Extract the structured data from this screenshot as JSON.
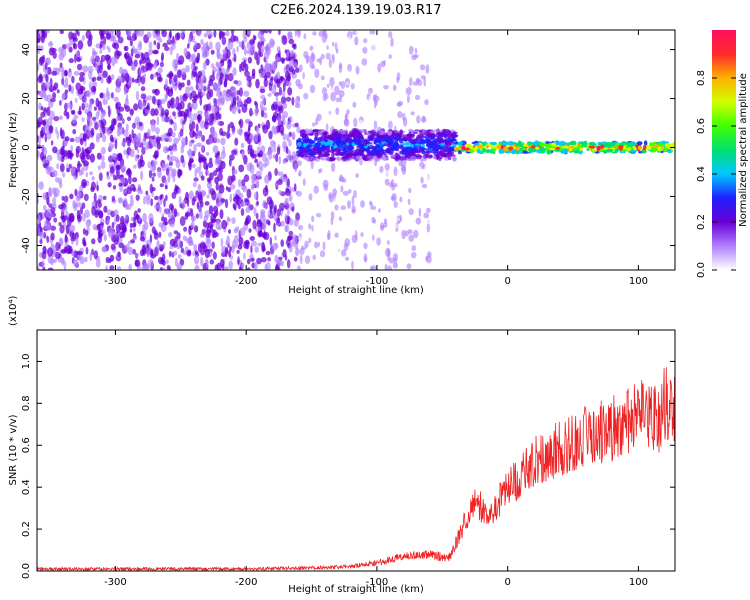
{
  "title": "C2E6.2024.139.19.03.R17",
  "colors": {
    "snr_line": "#ee2222",
    "spectrogram_purple": "#7a10e0",
    "colorbar_stops": [
      "#ffffff",
      "#b080ff",
      "#6a00d8",
      "#2020ff",
      "#00c8ff",
      "#00e070",
      "#40ff00",
      "#d0ff00",
      "#ffb000",
      "#ff2a2a",
      "#ff1060"
    ]
  },
  "chart_data": [
    {
      "type": "heatmap",
      "xlabel": "Height of straight line (km)",
      "ylabel": "Frequency (Hz)",
      "xlim": [
        -360,
        128
      ],
      "ylim": [
        -50,
        48
      ],
      "x_ticks": [
        "-300",
        "-200",
        "-100",
        "0",
        "100"
      ],
      "x_tick_values": [
        -300,
        -200,
        -100,
        0,
        100
      ],
      "y_ticks": [
        "40",
        "20",
        "0",
        "-20",
        "-40"
      ],
      "y_tick_values": [
        40,
        20,
        0,
        -20,
        -40
      ],
      "colorbar": {
        "label": "Normalized spectral amplitude",
        "range": [
          0,
          1
        ],
        "ticks": [
          "0.0",
          "0.2",
          "0.4",
          "0.6",
          "0.8"
        ],
        "tick_values": [
          0.0,
          0.2,
          0.4,
          0.6,
          0.8
        ]
      },
      "regions": [
        {
          "description": "broadband noise",
          "x_range": [
            -360,
            -160
          ],
          "freq_range": [
            -50,
            48
          ],
          "amplitude": 0.12
        },
        {
          "description": "sparse noise",
          "x_range": [
            -160,
            -60
          ],
          "freq_range": [
            -50,
            48
          ],
          "amplitude": 0.05
        },
        {
          "description": "narrowband signal",
          "x_range": [
            -160,
            -40
          ],
          "center_freq": 1,
          "half_width_hz": 6,
          "amplitude": 0.35
        },
        {
          "description": "narrowband signal",
          "x_range": [
            -40,
            128
          ],
          "center_freq": 0,
          "half_width_hz": 2,
          "amplitude": 0.9
        }
      ],
      "grid": false
    },
    {
      "type": "line",
      "xlabel": "Height of straight line (km)",
      "ylabel": "SNR (10 * v/v)",
      "y_scale_label": "(x10⁴)",
      "xlim": [
        -360,
        128
      ],
      "ylim": [
        0,
        1.15
      ],
      "x_ticks": [
        "-300",
        "-200",
        "-100",
        "0",
        "100"
      ],
      "x_tick_values": [
        -300,
        -200,
        -100,
        0,
        100
      ],
      "y_ticks": [
        "0.0",
        "0.2",
        "0.4",
        "0.6",
        "0.8",
        "1.0"
      ],
      "y_tick_values": [
        0.0,
        0.2,
        0.4,
        0.6,
        0.8,
        1.0
      ],
      "series": [
        {
          "x": [
            -360,
            -300,
            -250,
            -200,
            -150,
            -120,
            -100,
            -80,
            -60,
            -45,
            -35,
            -25,
            -15,
            -5,
            0,
            10,
            20,
            35,
            50,
            65,
            80,
            95,
            105,
            115,
            120,
            128
          ],
          "values": [
            0.01,
            0.01,
            0.01,
            0.01,
            0.015,
            0.02,
            0.04,
            0.07,
            0.08,
            0.06,
            0.2,
            0.35,
            0.25,
            0.35,
            0.4,
            0.45,
            0.52,
            0.57,
            0.61,
            0.66,
            0.68,
            0.72,
            0.75,
            0.72,
            0.8,
            0.78
          ]
        }
      ],
      "grid": false
    }
  ]
}
